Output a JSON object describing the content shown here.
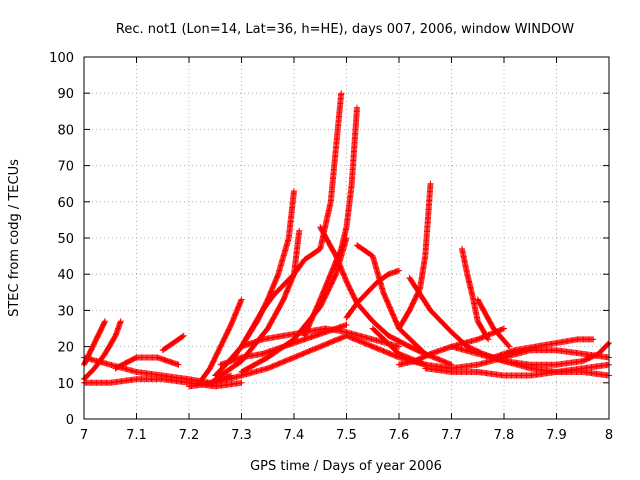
{
  "chart_data": {
    "type": "scatter",
    "title": "Rec. not1 (Lon=14, Lat=36, h=HE), days 007, 2006, window WINDOW",
    "xlabel": "GPS time / Days of year 2006",
    "ylabel": "STEC from codg / TECUs",
    "xlim": [
      7,
      8
    ],
    "ylim": [
      0,
      100
    ],
    "xticks": [
      "7",
      "7.1",
      "7.2",
      "7.3",
      "7.4",
      "7.5",
      "7.6",
      "7.7",
      "7.8",
      "7.9",
      "8"
    ],
    "yticks": [
      "0",
      "10",
      "20",
      "30",
      "40",
      "50",
      "60",
      "70",
      "80",
      "90",
      "100"
    ],
    "grid": true,
    "marker": "+",
    "color": "#ff0000",
    "series": [
      {
        "x": [
          7.0,
          7.01,
          7.02,
          7.03,
          7.04
        ],
        "y": [
          15,
          18,
          21,
          24,
          27
        ]
      },
      {
        "x": [
          7.0,
          7.02,
          7.04,
          7.06,
          7.07
        ],
        "y": [
          11,
          14,
          18,
          23,
          27
        ]
      },
      {
        "x": [
          7.0,
          7.05,
          7.1,
          7.15,
          7.2,
          7.24,
          7.28
        ],
        "y": [
          17,
          15,
          13,
          12,
          11,
          10,
          12
        ]
      },
      {
        "x": [
          7.0,
          7.05,
          7.1,
          7.15,
          7.2,
          7.25,
          7.3
        ],
        "y": [
          10,
          10,
          11,
          11,
          10,
          9,
          10
        ]
      },
      {
        "x": [
          7.06,
          7.1,
          7.14,
          7.18
        ],
        "y": [
          14,
          17,
          17,
          15
        ]
      },
      {
        "x": [
          7.15,
          7.17,
          7.19
        ],
        "y": [
          19,
          21,
          23
        ]
      },
      {
        "x": [
          7.22,
          7.24,
          7.26,
          7.28,
          7.3
        ],
        "y": [
          10,
          14,
          20,
          26,
          33
        ]
      },
      {
        "x": [
          7.25,
          7.27,
          7.3,
          7.33,
          7.35,
          7.37,
          7.39,
          7.4
        ],
        "y": [
          12,
          15,
          20,
          27,
          33,
          40,
          50,
          63
        ]
      },
      {
        "x": [
          7.25,
          7.3,
          7.35,
          7.38,
          7.4,
          7.41
        ],
        "y": [
          11,
          16,
          25,
          33,
          40,
          52
        ]
      },
      {
        "x": [
          7.28,
          7.3,
          7.32,
          7.34,
          7.36,
          7.38,
          7.4,
          7.42,
          7.45,
          7.47,
          7.48,
          7.49
        ],
        "y": [
          16,
          20,
          25,
          30,
          34,
          37,
          40,
          44,
          47,
          60,
          75,
          90
        ]
      },
      {
        "x": [
          7.26,
          7.3,
          7.34,
          7.38,
          7.42,
          7.46,
          7.5
        ],
        "y": [
          15,
          17,
          18,
          20,
          22,
          24,
          26
        ]
      },
      {
        "x": [
          7.3,
          7.35,
          7.4,
          7.45,
          7.48,
          7.5
        ],
        "y": [
          13,
          17,
          22,
          31,
          40,
          50
        ]
      },
      {
        "x": [
          7.3,
          7.34,
          7.38,
          7.42,
          7.46,
          7.5,
          7.55,
          7.6
        ],
        "y": [
          20,
          22,
          23,
          24,
          25,
          24,
          22,
          20
        ]
      },
      {
        "x": [
          7.2,
          7.25,
          7.3,
          7.35,
          7.4,
          7.45,
          7.5,
          7.55,
          7.6,
          7.65
        ],
        "y": [
          9,
          10,
          12,
          14,
          17,
          20,
          23,
          20,
          17,
          15
        ]
      },
      {
        "x": [
          7.42,
          7.45,
          7.47,
          7.49,
          7.5,
          7.51,
          7.52
        ],
        "y": [
          23,
          33,
          40,
          47,
          53,
          65,
          86
        ]
      },
      {
        "x": [
          7.45,
          7.48,
          7.5,
          7.52,
          7.55,
          7.58,
          7.62,
          7.65
        ],
        "y": [
          53,
          45,
          38,
          32,
          27,
          23,
          20,
          18
        ]
      },
      {
        "x": [
          7.5,
          7.52,
          7.54,
          7.56,
          7.58,
          7.6
        ],
        "y": [
          28,
          32,
          35,
          38,
          40,
          41
        ]
      },
      {
        "x": [
          7.52,
          7.55,
          7.57,
          7.6,
          7.65,
          7.7
        ],
        "y": [
          48,
          45,
          35,
          25,
          18,
          15
        ]
      },
      {
        "x": [
          7.6,
          7.62,
          7.64,
          7.65,
          7.66
        ],
        "y": [
          25,
          30,
          36,
          45,
          65
        ]
      },
      {
        "x": [
          7.6,
          7.63,
          7.66,
          7.7,
          7.75,
          7.8
        ],
        "y": [
          15,
          16,
          18,
          20,
          22,
          25
        ]
      },
      {
        "x": [
          7.55,
          7.6,
          7.65,
          7.7,
          7.75,
          7.8,
          7.85,
          7.9,
          7.95,
          8.0
        ],
        "y": [
          25,
          18,
          15,
          14,
          15,
          17,
          19,
          19,
          18,
          17
        ]
      },
      {
        "x": [
          7.62,
          7.66,
          7.7,
          7.73,
          7.76,
          7.78,
          7.8
        ],
        "y": [
          39,
          30,
          24,
          20,
          18,
          17,
          16
        ]
      },
      {
        "x": [
          7.72,
          7.73,
          7.74,
          7.75,
          7.77
        ],
        "y": [
          47,
          40,
          34,
          27,
          22
        ]
      },
      {
        "x": [
          7.75,
          7.78,
          7.81
        ],
        "y": [
          33,
          25,
          20
        ]
      },
      {
        "x": [
          7.65,
          7.7,
          7.75,
          7.8,
          7.85,
          7.9,
          7.95,
          8.0
        ],
        "y": [
          14,
          13,
          13,
          12,
          12,
          13,
          13,
          12
        ]
      },
      {
        "x": [
          7.78,
          7.82,
          7.86,
          7.9,
          7.94,
          7.97
        ],
        "y": [
          17,
          19,
          20,
          21,
          22,
          22
        ]
      },
      {
        "x": [
          7.8,
          7.85,
          7.9,
          7.95,
          7.98,
          8.0
        ],
        "y": [
          16,
          15,
          15,
          16,
          18,
          21
        ]
      },
      {
        "x": [
          7.7,
          7.75,
          7.8,
          7.85,
          7.9,
          7.95,
          8.0
        ],
        "y": [
          20,
          18,
          16,
          14,
          13,
          14,
          15
        ]
      }
    ]
  }
}
